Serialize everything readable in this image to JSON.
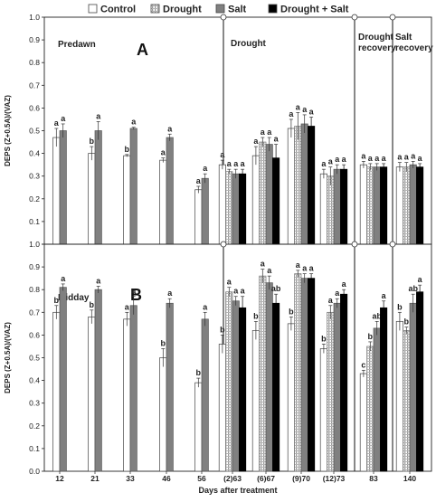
{
  "chart_data": {
    "type": "bar",
    "legend": {
      "placement": "top",
      "entries": [
        {
          "name": "Control",
          "color": "#ffffff"
        },
        {
          "name": "Drought",
          "color": "#d0d0d0"
        },
        {
          "name": "Salt",
          "color": "#808080"
        },
        {
          "name": "Drought + Salt",
          "color": "#000000"
        }
      ]
    },
    "x_label": "Days after treatment",
    "categories": [
      "12",
      "21",
      "33",
      "46",
      "56",
      "(2)63",
      "(6)67",
      "(9)70",
      "(12)73",
      "83",
      "140"
    ],
    "series_names": [
      "Control",
      "Drought",
      "Salt",
      "Drought + Salt"
    ],
    "panels": [
      {
        "id": "A",
        "letter": "A",
        "title": "Predawn",
        "ylabel": "DEPS (Z+0.5A)/(VAZ)",
        "ylim": [
          0,
          1.0
        ],
        "yticks": [
          "0.0",
          "0.1",
          "0.2",
          "0.3",
          "0.4",
          "0.5",
          "0.6",
          "0.7",
          "0.8",
          "0.9",
          "1.0"
        ],
        "section_labels": [
          "Drought",
          "Drought recovery",
          "Salt recovery"
        ],
        "values": [
          [
            0.47,
            null,
            0.5,
            null
          ],
          [
            0.4,
            null,
            0.5,
            null
          ],
          [
            0.39,
            null,
            0.51,
            null
          ],
          [
            0.37,
            null,
            0.47,
            null
          ],
          [
            0.24,
            null,
            0.29,
            null
          ],
          [
            0.35,
            0.32,
            0.31,
            0.31
          ],
          [
            0.39,
            0.45,
            0.44,
            0.38
          ],
          [
            0.51,
            0.52,
            0.53,
            0.52
          ],
          [
            0.31,
            0.3,
            0.33,
            0.33
          ],
          [
            0.35,
            0.34,
            0.34,
            0.34
          ],
          [
            0.34,
            0.34,
            0.35,
            0.34
          ]
        ],
        "errors": [
          [
            0.04,
            null,
            0.03,
            null
          ],
          [
            0.03,
            null,
            0.04,
            null
          ],
          [
            0.005,
            null,
            0.005,
            null
          ],
          [
            0.01,
            null,
            0.015,
            null
          ],
          [
            0.015,
            null,
            0.02,
            null
          ],
          [
            0.02,
            0.01,
            0.02,
            0.02
          ],
          [
            0.04,
            0.02,
            0.03,
            0.06
          ],
          [
            0.04,
            0.06,
            0.04,
            0.04
          ],
          [
            0.02,
            0.04,
            0.02,
            0.02
          ],
          [
            0.015,
            0.015,
            0.015,
            0.015
          ],
          [
            0.02,
            0.02,
            0.015,
            0.015
          ]
        ],
        "letters": [
          [
            "a",
            null,
            "a",
            null
          ],
          [
            "b",
            null,
            "a",
            null
          ],
          [
            "b",
            null,
            "a",
            null
          ],
          [
            "a",
            null,
            "a",
            null
          ],
          [
            "a",
            null,
            "a",
            null
          ],
          [
            "a",
            "a",
            "a",
            "a"
          ],
          [
            "a",
            "a",
            "a",
            "a"
          ],
          [
            "a",
            "a",
            "a",
            "a"
          ],
          [
            "a",
            "a",
            "a",
            "a"
          ],
          [
            "a",
            "a",
            "a",
            "a"
          ],
          [
            "a",
            "a",
            "a",
            "a"
          ]
        ]
      },
      {
        "id": "B",
        "letter": "B",
        "title": "Midday",
        "ylabel": "DEPS (Z+0.5A)/(VAZ)",
        "ylim": [
          0,
          1.0
        ],
        "yticks": [
          "0.0",
          "0.1",
          "0.2",
          "0.3",
          "0.4",
          "0.5",
          "0.6",
          "0.7",
          "0.8",
          "0.9",
          "1.0"
        ],
        "section_labels": [],
        "values": [
          [
            0.7,
            null,
            0.81,
            null
          ],
          [
            0.68,
            null,
            0.8,
            null
          ],
          [
            0.67,
            null,
            0.73,
            null
          ],
          [
            0.5,
            null,
            0.74,
            null
          ],
          [
            0.39,
            null,
            0.67,
            null
          ],
          [
            0.56,
            0.79,
            0.75,
            0.72
          ],
          [
            0.62,
            0.86,
            0.83,
            0.74
          ],
          [
            0.65,
            0.87,
            0.85,
            0.85
          ],
          [
            0.54,
            0.7,
            0.74,
            0.78
          ],
          [
            0.43,
            0.55,
            0.63,
            0.72
          ],
          [
            0.66,
            0.62,
            0.74,
            0.79
          ]
        ],
        "errors": [
          [
            0.03,
            null,
            0.015,
            null
          ],
          [
            0.03,
            null,
            0.015,
            null
          ],
          [
            0.03,
            null,
            0.04,
            null
          ],
          [
            0.04,
            null,
            0.02,
            null
          ],
          [
            0.02,
            null,
            0.03,
            null
          ],
          [
            0.04,
            0.02,
            0.02,
            0.05
          ],
          [
            0.04,
            0.03,
            0.03,
            0.04
          ],
          [
            0.03,
            0.015,
            0.02,
            0.02
          ],
          [
            0.02,
            0.03,
            0.02,
            0.02
          ],
          [
            0.015,
            0.02,
            0.03,
            0.03
          ],
          [
            0.04,
            0.015,
            0.04,
            0.03
          ]
        ],
        "letters": [
          [
            "b",
            null,
            "a",
            null
          ],
          [
            "b",
            null,
            "a",
            null
          ],
          [
            "a",
            null,
            "a",
            null
          ],
          [
            "b",
            null,
            "a",
            null
          ],
          [
            "b",
            null,
            "a",
            null
          ],
          [
            "b",
            "a",
            "a",
            "a"
          ],
          [
            "b",
            "a",
            "a",
            "ab"
          ],
          [
            "b",
            "a",
            "a",
            "a"
          ],
          [
            "b",
            "a",
            "a",
            "a"
          ],
          [
            "c",
            "b",
            "ab",
            "a"
          ],
          [
            "b",
            "b",
            "ab",
            "a"
          ]
        ]
      }
    ]
  }
}
